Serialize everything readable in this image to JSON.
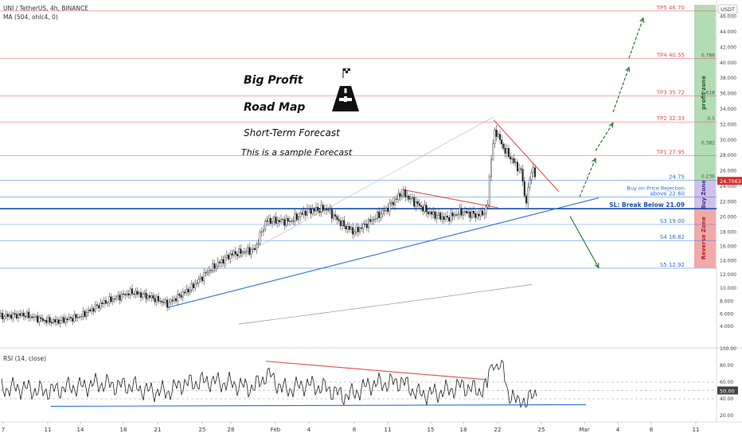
{
  "header": {
    "symbol_line": "UNI / TetherUS, 4h, BINANCE",
    "ma_line": "MA (504, ohlc4, 0)",
    "rsi_line": "RSI (14, close)",
    "currency": "USDT"
  },
  "annotations": {
    "title1": "Big Profit",
    "title2": "Road Map",
    "subtitle": "Short-Term Forecast",
    "note": "This is a sample Forecast"
  },
  "colors": {
    "target_red": "#e05050",
    "support_blue": "#2e6fd3",
    "profit_zone": "#a5d6a7",
    "buy_zone": "#c5b7e3",
    "reverse_zone": "#ef9a9a",
    "arrow_green": "#2e7d32",
    "candle_dark": "#222222"
  },
  "chart_data": {
    "type": "candlestick",
    "symbol": "UNI / TetherUS",
    "timeframe": "4h",
    "exchange": "BINANCE",
    "ylim": [
      4.0,
      48.0
    ],
    "y_ticks": [
      4.0,
      6.0,
      8.0,
      10.0,
      12.0,
      14.0,
      16.0,
      18.0,
      20.0,
      22.0,
      24.0,
      26.0,
      28.0,
      30.0,
      32.0,
      34.0,
      36.0,
      38.0,
      40.0,
      42.0,
      44.0,
      46.0
    ],
    "x_ticks": [
      "7",
      "11",
      "14",
      "18",
      "21",
      "25",
      "28",
      "Feb",
      "4",
      "8",
      "11",
      "15",
      "18",
      "22",
      "25",
      "Mar",
      "4",
      "8",
      "11"
    ],
    "last_price": "24.7063",
    "levels": [
      {
        "label": "TP5 46.70",
        "value": 46.7,
        "color": "#e05050"
      },
      {
        "label": "TP4 40.55",
        "value": 40.55,
        "color": "#e05050"
      },
      {
        "label": "TP3 35.72",
        "value": 35.72,
        "color": "#e05050"
      },
      {
        "label": "TP2 32.33",
        "value": 32.33,
        "color": "#e05050"
      },
      {
        "label": "TP1 27.95",
        "value": 27.95,
        "color": "#e05050"
      },
      {
        "label": "24.75",
        "value": 24.75,
        "color": "#2e6fd3"
      },
      {
        "label": "above 22.60",
        "value": 22.6,
        "color": "#2e6fd3"
      },
      {
        "label": "SL: Break Below 21.09",
        "value": 21.09,
        "color": "#1d4fb0"
      },
      {
        "label": "S3 19.00",
        "value": 19.0,
        "color": "#2e6fd3"
      },
      {
        "label": "S4 16.82",
        "value": 16.82,
        "color": "#2e6fd3"
      },
      {
        "label": "S5 12.92",
        "value": 12.92,
        "color": "#2e6fd3"
      }
    ],
    "buy_label": "Buy on Price Rejection",
    "fib_levels": [
      {
        "label": "0.786",
        "value": 40.55
      },
      {
        "label": "0.618",
        "value": 35.72
      },
      {
        "label": "0.5",
        "value": 32.33
      },
      {
        "label": "0.382",
        "value": 29.2
      },
      {
        "label": "0.236",
        "value": 24.9
      }
    ],
    "zones": [
      {
        "label": "profit zone",
        "from": 24.75,
        "to": 47.5,
        "color": "#a5d6a7"
      },
      {
        "label": "Buy Zone",
        "from": 21.09,
        "to": 24.75,
        "color": "#c5b7e3"
      },
      {
        "label": "Reverse Zone",
        "from": 13.0,
        "to": 21.09,
        "color": "#ef9a9a"
      }
    ],
    "rsi": {
      "ylim": [
        20,
        100
      ],
      "ticks": [
        20.0,
        40.0,
        60.0,
        80.0,
        100.0
      ],
      "last": "50.00"
    }
  }
}
